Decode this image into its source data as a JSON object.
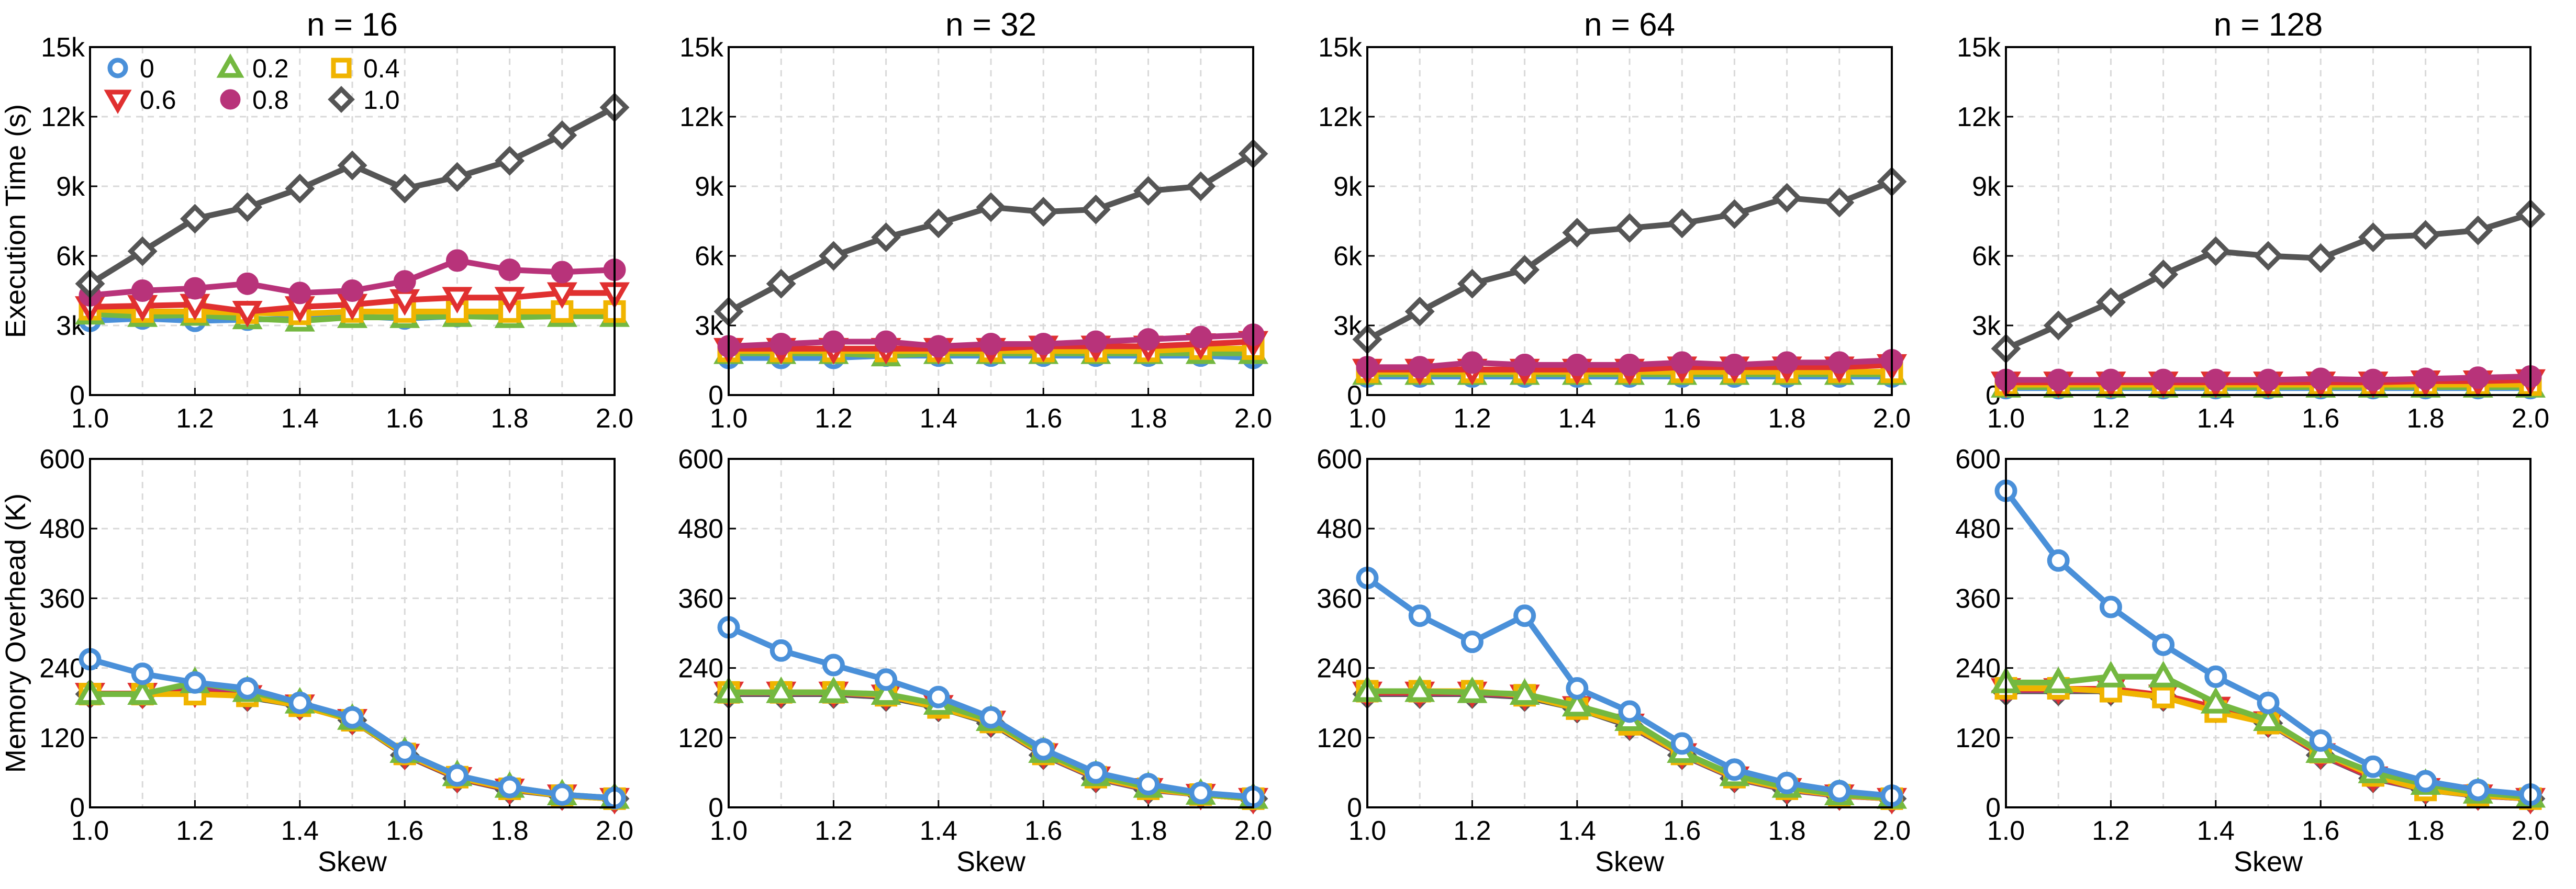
{
  "chart_data": {
    "type": "line",
    "x": [
      1.0,
      1.1,
      1.2,
      1.3,
      1.4,
      1.5,
      1.6,
      1.7,
      1.8,
      1.9,
      2.0
    ],
    "xticks": [
      "1.0",
      "1.2",
      "1.4",
      "1.6",
      "1.8",
      "2.0"
    ],
    "xlabel": "Skew",
    "legend": {
      "location": "top-left of first panel",
      "entries": [
        {
          "label": "0",
          "color": "#4a90d9",
          "marker": "circle-open"
        },
        {
          "label": "0.2",
          "color": "#74b840",
          "marker": "triangle-up-open"
        },
        {
          "label": "0.4",
          "color": "#f0b400",
          "marker": "square-open"
        },
        {
          "label": "0.6",
          "color": "#e03030",
          "marker": "triangle-down-open"
        },
        {
          "label": "0.8",
          "color": "#b8337a",
          "marker": "circle-filled"
        },
        {
          "label": "1.0",
          "color": "#555555",
          "marker": "diamond-open"
        }
      ]
    },
    "rows": [
      {
        "ylabel": "Execution Time (s)",
        "ylim": [
          0,
          15000
        ],
        "yticks": [
          "0",
          "3k",
          "6k",
          "9k",
          "12k",
          "15k"
        ],
        "panels": [
          {
            "title": "n = 16",
            "series": [
              {
                "name": "0",
                "values": [
                  3200,
                  3300,
                  3200,
                  3250,
                  3300,
                  3400,
                  3300,
                  3400,
                  3450,
                  3450,
                  3450
                ]
              },
              {
                "name": "0.2",
                "values": [
                  3500,
                  3400,
                  3450,
                  3300,
                  3200,
                  3350,
                  3350,
                  3400,
                  3350,
                  3400,
                  3400
                ]
              },
              {
                "name": "0.4",
                "values": [
                  3700,
                  3600,
                  3600,
                  3550,
                  3500,
                  3600,
                  3600,
                  3600,
                  3600,
                  3600,
                  3600
                ]
              },
              {
                "name": "0.6",
                "values": [
                  3800,
                  3850,
                  3900,
                  3600,
                  3800,
                  3900,
                  4100,
                  4200,
                  4200,
                  4400,
                  4400
                ]
              },
              {
                "name": "0.8",
                "values": [
                  4300,
                  4500,
                  4600,
                  4800,
                  4400,
                  4500,
                  4900,
                  5800,
                  5400,
                  5300,
                  5400
                ]
              },
              {
                "name": "1.0",
                "values": [
                  4800,
                  6200,
                  7600,
                  8100,
                  8900,
                  9900,
                  8900,
                  9400,
                  10100,
                  11200,
                  12400
                ]
              }
            ]
          },
          {
            "title": "n = 32",
            "series": [
              {
                "name": "0",
                "values": [
                  1600,
                  1600,
                  1600,
                  1700,
                  1700,
                  1700,
                  1700,
                  1700,
                  1700,
                  1700,
                  1600
                ]
              },
              {
                "name": "0.2",
                "values": [
                  1800,
                  1800,
                  1800,
                  1700,
                  1800,
                  1800,
                  1800,
                  1800,
                  1800,
                  1800,
                  1800
                ]
              },
              {
                "name": "0.4",
                "values": [
                  1900,
                  1900,
                  1900,
                  1900,
                  1900,
                  1900,
                  1900,
                  1900,
                  1900,
                  2000,
                  2000
                ]
              },
              {
                "name": "0.6",
                "values": [
                  2000,
                  2000,
                  2000,
                  2000,
                  2000,
                  2000,
                  2100,
                  2100,
                  2100,
                  2200,
                  2300
                ]
              },
              {
                "name": "0.8",
                "values": [
                  2100,
                  2200,
                  2300,
                  2300,
                  2100,
                  2200,
                  2200,
                  2300,
                  2400,
                  2500,
                  2600
                ]
              },
              {
                "name": "1.0",
                "values": [
                  3600,
                  4800,
                  6000,
                  6800,
                  7400,
                  8100,
                  7900,
                  8000,
                  8800,
                  9000,
                  10400
                ]
              }
            ]
          },
          {
            "title": "n = 64",
            "series": [
              {
                "name": "0",
                "values": [
                  800,
                  800,
                  800,
                  800,
                  800,
                  800,
                  800,
                  800,
                  800,
                  800,
                  800
                ]
              },
              {
                "name": "0.2",
                "values": [
                  900,
                  900,
                  900,
                  900,
                  900,
                  900,
                  900,
                  900,
                  900,
                  900,
                  900
                ]
              },
              {
                "name": "0.4",
                "values": [
                  1000,
                  1000,
                  1000,
                  1000,
                  1000,
                  1000,
                  1000,
                  1000,
                  1000,
                  1000,
                  1000
                ]
              },
              {
                "name": "0.6",
                "values": [
                  1100,
                  1100,
                  1100,
                  1100,
                  1100,
                  1100,
                  1200,
                  1200,
                  1200,
                  1200,
                  1300
                ]
              },
              {
                "name": "0.8",
                "values": [
                  1200,
                  1200,
                  1400,
                  1300,
                  1300,
                  1300,
                  1400,
                  1300,
                  1400,
                  1400,
                  1500
                ]
              },
              {
                "name": "1.0",
                "values": [
                  2400,
                  3600,
                  4800,
                  5400,
                  7000,
                  7200,
                  7400,
                  7800,
                  8500,
                  8300,
                  9200
                ]
              }
            ]
          },
          {
            "title": "n = 128",
            "series": [
              {
                "name": "0",
                "values": [
                  300,
                  300,
                  300,
                  300,
                  300,
                  300,
                  300,
                  300,
                  300,
                  300,
                  300
                ]
              },
              {
                "name": "0.2",
                "values": [
                  350,
                  350,
                  350,
                  350,
                  350,
                  350,
                  350,
                  350,
                  350,
                  350,
                  350
                ]
              },
              {
                "name": "0.4",
                "values": [
                  450,
                  450,
                  450,
                  450,
                  450,
                  450,
                  450,
                  450,
                  450,
                  450,
                  450
                ]
              },
              {
                "name": "0.6",
                "values": [
                  550,
                  550,
                  550,
                  550,
                  550,
                  550,
                  550,
                  550,
                  600,
                  600,
                  650
                ]
              },
              {
                "name": "0.8",
                "values": [
                  650,
                  650,
                  650,
                  650,
                  650,
                  650,
                  700,
                  650,
                  700,
                  750,
                  800
                ]
              },
              {
                "name": "1.0",
                "values": [
                  2000,
                  3000,
                  4000,
                  5200,
                  6200,
                  6000,
                  5900,
                  6800,
                  6900,
                  7100,
                  7800
                ]
              }
            ]
          }
        ]
      },
      {
        "ylabel": "Memory Overhead (K)",
        "ylim": [
          0,
          600
        ],
        "yticks": [
          "0",
          "120",
          "240",
          "360",
          "480",
          "600"
        ],
        "panels": [
          {
            "title": "",
            "series": [
              {
                "name": "1.0",
                "values": [
                  195,
                  195,
                  200,
                  190,
                  175,
                  150,
                  90,
                  50,
                  30,
                  20,
                  15
                ]
              },
              {
                "name": "0.8",
                "values": [
                  195,
                  195,
                  205,
                  195,
                  178,
                  152,
                  92,
                  52,
                  32,
                  21,
                  15
                ]
              },
              {
                "name": "0.6",
                "values": [
                  196,
                  196,
                  198,
                  192,
                  176,
                  151,
                  91,
                  51,
                  31,
                  21,
                  15
                ]
              },
              {
                "name": "0.4",
                "values": [
                  195,
                  195,
                  195,
                  192,
                  175,
                  150,
                  92,
                  52,
                  32,
                  20,
                  15
                ]
              },
              {
                "name": "0.2",
                "values": [
                  195,
                  195,
                  215,
                  200,
                  180,
                  152,
                  95,
                  55,
                  35,
                  22,
                  16
                ]
              },
              {
                "name": "0",
                "values": [
                  255,
                  230,
                  215,
                  205,
                  180,
                  155,
                  95,
                  55,
                  35,
                  22,
                  16
                ]
              }
            ]
          },
          {
            "title": "",
            "series": [
              {
                "name": "1.0",
                "values": [
                  195,
                  195,
                  195,
                  190,
                  172,
                  145,
                  90,
                  50,
                  30,
                  22,
                  15
                ]
              },
              {
                "name": "0.8",
                "values": [
                  197,
                  197,
                  197,
                  192,
                  174,
                  147,
                  91,
                  51,
                  31,
                  22,
                  15
                ]
              },
              {
                "name": "0.6",
                "values": [
                  198,
                  198,
                  198,
                  193,
                  175,
                  148,
                  92,
                  52,
                  32,
                  22,
                  15
                ]
              },
              {
                "name": "0.4",
                "values": [
                  198,
                  198,
                  198,
                  193,
                  172,
                  147,
                  92,
                  52,
                  32,
                  22,
                  15
                ]
              },
              {
                "name": "0.2",
                "values": [
                  198,
                  198,
                  198,
                  195,
                  178,
                  150,
                  95,
                  55,
                  35,
                  23,
                  16
                ]
              },
              {
                "name": "0",
                "values": [
                  310,
                  270,
                  245,
                  220,
                  190,
                  155,
                  100,
                  60,
                  40,
                  25,
                  18
                ]
              }
            ]
          },
          {
            "title": "",
            "series": [
              {
                "name": "1.0",
                "values": [
                  195,
                  195,
                  195,
                  190,
                  170,
                  140,
                  90,
                  50,
                  30,
                  20,
                  15
                ]
              },
              {
                "name": "0.8",
                "values": [
                  197,
                  197,
                  197,
                  192,
                  172,
                  142,
                  91,
                  51,
                  31,
                  20,
                  15
                ]
              },
              {
                "name": "0.6",
                "values": [
                  198,
                  198,
                  198,
                  193,
                  173,
                  143,
                  92,
                  52,
                  32,
                  21,
                  15
                ]
              },
              {
                "name": "0.4",
                "values": [
                  200,
                  200,
                  200,
                  193,
                  170,
                  143,
                  92,
                  52,
                  32,
                  21,
                  15
                ]
              },
              {
                "name": "0.2",
                "values": [
                  200,
                  200,
                  198,
                  195,
                  175,
                  150,
                  95,
                  55,
                  35,
                  22,
                  16
                ]
              },
              {
                "name": "0",
                "values": [
                  395,
                  330,
                  285,
                  330,
                  205,
                  165,
                  110,
                  65,
                  42,
                  28,
                  20
                ]
              }
            ]
          },
          {
            "title": "",
            "series": [
              {
                "name": "1.0",
                "values": [
                  200,
                  200,
                  200,
                  190,
                  170,
                  145,
                  90,
                  50,
                  30,
                  20,
                  15
                ]
              },
              {
                "name": "0.8",
                "values": [
                  202,
                  202,
                  202,
                  192,
                  172,
                  146,
                  91,
                  51,
                  31,
                  20,
                  15
                ]
              },
              {
                "name": "0.6",
                "values": [
                  204,
                  204,
                  204,
                  193,
                  172,
                  147,
                  92,
                  52,
                  32,
                  21,
                  15
                ]
              },
              {
                "name": "0.4",
                "values": [
                  205,
                  205,
                  200,
                  190,
                  165,
                  145,
                  95,
                  55,
                  30,
                  21,
                  15
                ]
              },
              {
                "name": "0.2",
                "values": [
                  215,
                  215,
                  225,
                  225,
                  180,
                  150,
                  95,
                  60,
                  40,
                  25,
                  18
                ]
              },
              {
                "name": "0",
                "values": [
                  545,
                  425,
                  345,
                  280,
                  225,
                  180,
                  115,
                  70,
                  45,
                  30,
                  22
                ]
              }
            ]
          }
        ]
      }
    ]
  }
}
